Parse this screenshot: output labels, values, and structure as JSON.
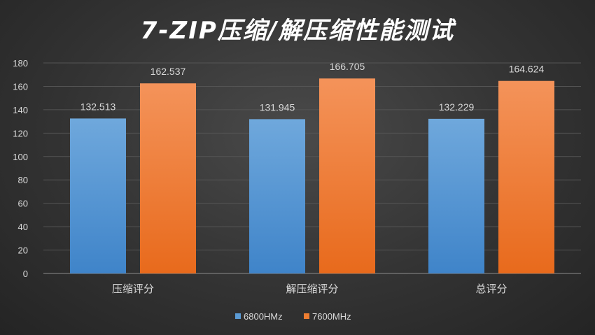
{
  "chart_data": {
    "type": "bar",
    "title": "7-ZIP压缩/解压缩性能测试",
    "categories": [
      "压缩评分",
      "解压缩评分",
      "总评分"
    ],
    "series": [
      {
        "name": "6800HMz",
        "values": [
          132.513,
          131.945,
          132.229
        ],
        "value_labels": [
          "132.513",
          "131.945",
          "132.229"
        ],
        "color": "#5b9bd5"
      },
      {
        "name": "7600MHz",
        "values": [
          162.537,
          166.705,
          164.624
        ],
        "value_labels": [
          "162.537",
          "166.705",
          "164.624"
        ],
        "color": "#ed7d31"
      }
    ],
    "y_ticks": [
      "0",
      "20",
      "40",
      "60",
      "80",
      "100",
      "120",
      "140",
      "160",
      "180"
    ],
    "ylim": [
      0,
      180
    ],
    "grid": true,
    "legend_position": "bottom"
  }
}
